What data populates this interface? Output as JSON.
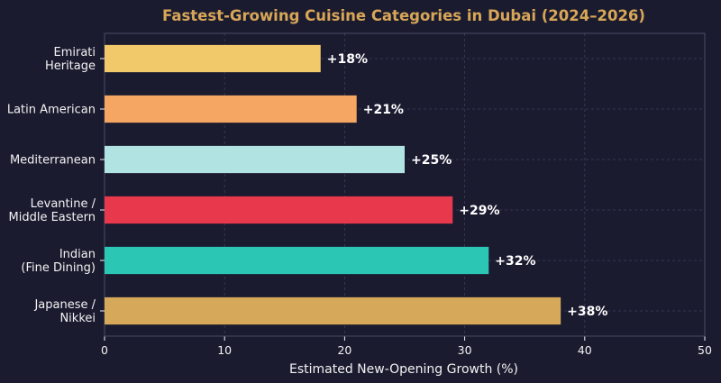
{
  "chart_data": {
    "type": "bar",
    "orientation": "horizontal",
    "title": "Fastest-Growing Cuisine Categories in Dubai (2024–2026)",
    "xlabel": "Estimated New-Opening Growth (%)",
    "ylabel": "",
    "xlim": [
      0,
      50
    ],
    "xticks": [
      "0",
      "10",
      "20",
      "30",
      "40",
      "50"
    ],
    "categories": [
      [
        "Emirati",
        "Heritage"
      ],
      [
        "Latin American"
      ],
      [
        "Mediterranean"
      ],
      [
        "Levantine /",
        "Middle Eastern"
      ],
      [
        "Indian",
        "(Fine Dining)"
      ],
      [
        "Japanese /",
        "Nikkei"
      ]
    ],
    "values": [
      18,
      21,
      25,
      29,
      32,
      38
    ],
    "data_labels": [
      "+18%",
      "+21%",
      "+25%",
      "+29%",
      "+32%",
      "+38%"
    ],
    "bar_colors": [
      "#f1c96a",
      "#f5a663",
      "#b2e3e3",
      "#e8384b",
      "#2cc6b4",
      "#d6a95a"
    ],
    "grid": true,
    "legend": "none"
  },
  "colors": {
    "background": "#1b1b30",
    "plot_border": "#4a4a66",
    "grid": "#3c3c5a",
    "title": "#d8a657",
    "text": "#f2f2f2"
  }
}
